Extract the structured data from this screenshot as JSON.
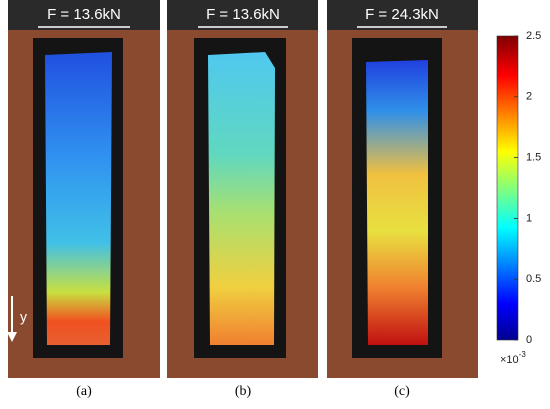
{
  "panels": [
    {
      "force": "F = 13.6kN",
      "caption": "(a)"
    },
    {
      "force": "F = 13.6kN",
      "caption": "(b)"
    },
    {
      "force": "F = 24.3kN",
      "caption": "(c)"
    }
  ],
  "axis_label": "y",
  "colorbar": {
    "lim": [
      0,
      2.5
    ],
    "ticks": [
      0,
      0.5,
      1,
      1.5,
      2,
      2.5
    ],
    "multiplier": "×10",
    "exponent": "-3"
  }
}
